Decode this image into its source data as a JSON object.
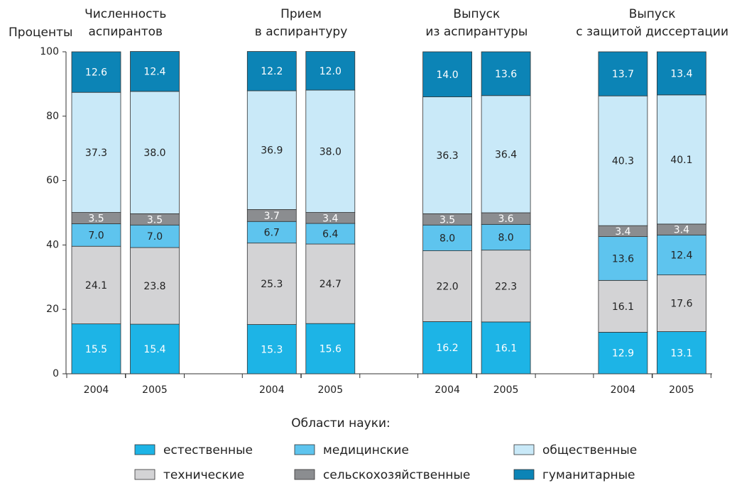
{
  "chart_data": {
    "type": "stacked_bar",
    "y_label": "Проценты",
    "groups": [
      {
        "lines": [
          "Численность",
          "аспирантов"
        ]
      },
      {
        "lines": [
          "Прием",
          "в аспирантуру"
        ]
      },
      {
        "lines": [
          "Выпуск",
          "из аспирантуры"
        ]
      },
      {
        "lines": [
          "Выпуск",
          "с защитой диссертации"
        ]
      }
    ],
    "categories": [
      "2004",
      "2005",
      "2004",
      "2005",
      "2004",
      "2005",
      "2004",
      "2005"
    ],
    "series": [
      {
        "name": "естественные",
        "color": "#1db4e6",
        "label_color": "#ffffff",
        "values": [
          15.5,
          15.4,
          15.3,
          15.6,
          16.2,
          16.1,
          12.9,
          13.1
        ],
        "value_labels": [
          "15.5",
          "15.4",
          "15.3",
          "15.6",
          "16.2",
          "16.1",
          "12.9",
          "13.1"
        ]
      },
      {
        "name": "технические",
        "color": "#d3d3d5",
        "label_color": "#222222",
        "values": [
          24.1,
          23.8,
          25.3,
          24.7,
          22.0,
          22.3,
          16.1,
          17.6
        ],
        "value_labels": [
          "24.1",
          "23.8",
          "25.3",
          "24.7",
          "22.0",
          "22.3",
          "16.1",
          "17.6"
        ]
      },
      {
        "name": "медицинские",
        "color": "#5ec4ee",
        "label_color": "#222222",
        "values": [
          7.0,
          7.0,
          6.7,
          6.4,
          8.0,
          8.0,
          13.6,
          12.4
        ],
        "value_labels": [
          "7.0",
          "7.0",
          "6.7",
          "6.4",
          "8.0",
          "8.0",
          "13.6",
          "12.4"
        ]
      },
      {
        "name": "сельскохозяйственные",
        "color": "#8b8d90",
        "label_color": "#ffffff",
        "values": [
          3.5,
          3.5,
          3.7,
          3.4,
          3.5,
          3.6,
          3.4,
          3.4
        ],
        "value_labels": [
          "3.5",
          "3.5",
          "3.7",
          "3.4",
          "3.5",
          "3.6",
          "3.4",
          "3.4"
        ]
      },
      {
        "name": "общественные",
        "color": "#c9e9f8",
        "label_color": "#222222",
        "values": [
          37.3,
          38.0,
          36.9,
          38.0,
          36.3,
          36.4,
          40.3,
          40.1
        ],
        "value_labels": [
          "37.3",
          "38.0",
          "36.9",
          "38.0",
          "36.3",
          "36.4",
          "40.3",
          "40.1"
        ]
      },
      {
        "name": "гуманитарные",
        "color": "#0c84b6",
        "label_color": "#ffffff",
        "values": [
          12.6,
          12.4,
          12.2,
          12.0,
          14.0,
          13.6,
          13.7,
          13.4
        ],
        "value_labels": [
          "12.6",
          "12.4",
          "12.2",
          "12.0",
          "14.0",
          "13.6",
          "13.7",
          "13.4"
        ]
      }
    ],
    "legend_title": "Области науки:",
    "ylim": [
      0,
      100
    ],
    "yticks": [
      0,
      20,
      40,
      60,
      80,
      100
    ]
  }
}
